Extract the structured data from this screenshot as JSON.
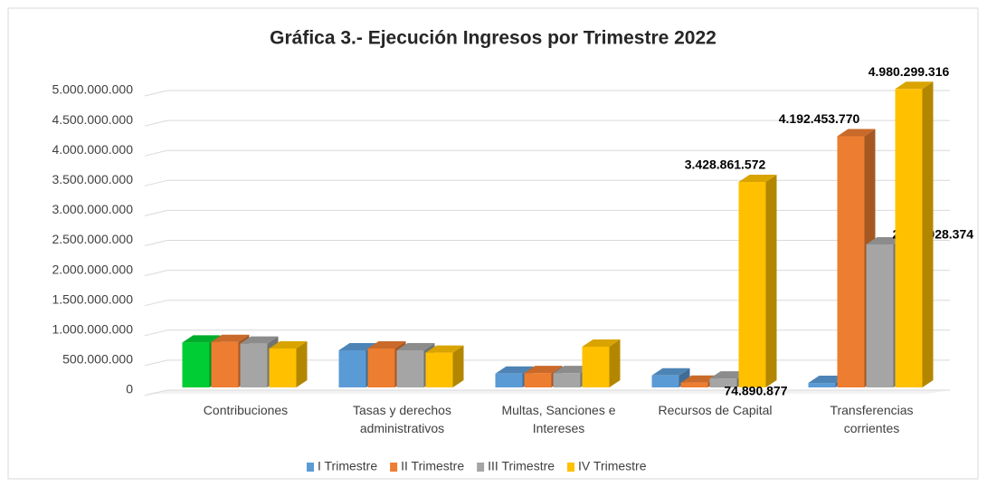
{
  "chart_data": {
    "type": "bar3d",
    "title": "Gráfica 3.- Ejecución Ingresos por Trimestre 2022",
    "categories": [
      "Contribuciones",
      "Tasas y derechos administrativos",
      "Multas, Sanciones e Intereses",
      "Recursos de Capital",
      "Transferencias corrientes"
    ],
    "series": [
      {
        "name": "I Trimestre",
        "color": "#5b9bd5",
        "point_colors": [
          {
            "index": 0,
            "color": "#00cc33"
          }
        ],
        "values": [
          750000000,
          620000000,
          230000000,
          200000000,
          74890877
        ],
        "value_labels": [
          null,
          null,
          null,
          null,
          "74.890.877"
        ]
      },
      {
        "name": "II Trimestre",
        "color": "#ed7d31",
        "values": [
          760000000,
          650000000,
          240000000,
          80000000,
          4192453770
        ],
        "value_labels": [
          null,
          null,
          null,
          null,
          "4.192.453.770"
        ]
      },
      {
        "name": "III Trimestre",
        "color": "#a5a5a5",
        "values": [
          730000000,
          620000000,
          240000000,
          150000000,
          2387028374
        ],
        "value_labels": [
          null,
          null,
          null,
          null,
          "2.387.028.374"
        ]
      },
      {
        "name": "IV Trimestre",
        "color": "#ffc000",
        "values": [
          650000000,
          580000000,
          680000000,
          3428861572,
          4980299316
        ],
        "value_labels": [
          null,
          null,
          null,
          "3.428.861.572",
          "4.980.299.316"
        ]
      }
    ],
    "ylim": [
      0,
      5000000000
    ],
    "yticks": [
      0,
      {
        "value": 500000000,
        "label": "500.000.000"
      },
      {
        "value": 1000000000,
        "label": "1.000.000.000"
      },
      {
        "value": 1500000000,
        "label": "1.500.000.000"
      },
      {
        "value": 2000000000,
        "label": "2.000.000.000"
      },
      {
        "value": 2500000000,
        "label": "2.500.000.000"
      },
      {
        "value": 3000000000,
        "label": "3.000.000.000"
      },
      {
        "value": 3500000000,
        "label": "3.500.000.000"
      },
      {
        "value": 4000000000,
        "label": "4.000.000.000"
      },
      {
        "value": 4500000000,
        "label": "4.500.000.000"
      },
      {
        "value": 5000000000,
        "label": "5.000.000.000"
      }
    ],
    "grid": true,
    "legend": "bottom"
  }
}
